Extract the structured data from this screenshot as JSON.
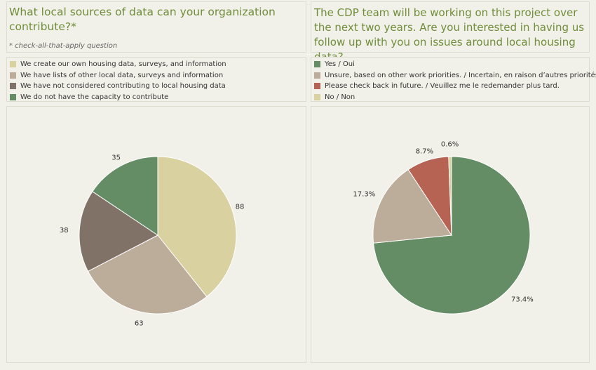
{
  "left": {
    "title": "What local sources of data can your organization contribute?*",
    "note": "* check-all-that-apply question"
  },
  "right": {
    "title": "The CDP team will be working on this project over the next two years. Are you interested in having us follow up with you on issues around local housing data?"
  },
  "chart_data": [
    {
      "type": "pie",
      "categories": [
        "We create our own housing data, surveys, and information",
        "We have lists of other local data, surveys and information",
        "We have not considered contributing to local housing data",
        "We do not have the capacity to contribute"
      ],
      "values": [
        88,
        63,
        38,
        35
      ],
      "labels": [
        "88",
        "63",
        "38",
        "35"
      ],
      "colors": [
        "#d9d1a0",
        "#bcac9a",
        "#817268",
        "#648c65"
      ],
      "legend": "top"
    },
    {
      "type": "pie",
      "categories": [
        "Yes / Oui",
        "Unsure, based on other work priorities. / Incertain, en raison d’autres priorités..",
        "Please check back in future. / Veuillez me le redemander plus tard.",
        "No / Non"
      ],
      "values": [
        73.4,
        17.3,
        8.7,
        0.6
      ],
      "labels": [
        "73.4%",
        "17.3%",
        "8.7%",
        "0.6%"
      ],
      "colors": [
        "#648c65",
        "#bcac9a",
        "#b76354",
        "#d9d1a0"
      ],
      "legend": "top"
    }
  ]
}
